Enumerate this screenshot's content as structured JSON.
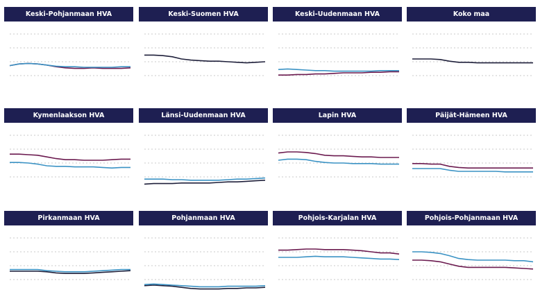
{
  "chart_data": {
    "type": "line",
    "layout": "small-multiples 4x3",
    "colors": {
      "panel_title_bg": "#1e1f52",
      "panel_title_text": "#ffffff",
      "series_a": "#6b1a4f",
      "series_b": "#3a92c4"
    },
    "ylim": [
      0,
      100
    ],
    "grid": true,
    "panels": [
      {
        "title": "Keski-Pohjanmaan HVA",
        "series": [
          {
            "color": "#6b1a4f",
            "values": [
              43,
              46,
              47,
              46,
              44,
              41,
              39,
              38,
              38,
              39,
              38,
              38,
              38,
              39
            ]
          },
          {
            "color": "#3a92c4",
            "values": [
              43,
              46,
              47,
              46,
              44,
              42,
              41,
              41,
              40,
              40,
              40,
              40,
              41,
              41
            ]
          }
        ]
      },
      {
        "title": "Keski-Suomen HVA",
        "series": [
          {
            "color": "#1e1f3a",
            "values": [
              62,
              62,
              61,
              59,
              55,
              53,
              52,
              51,
              51,
              50,
              49,
              48,
              49,
              50
            ]
          }
        ]
      },
      {
        "title": "Keski-Uudenmaan HVA",
        "series": [
          {
            "color": "#6b1a4f",
            "values": [
              26,
              26,
              27,
              27,
              28,
              28,
              29,
              30,
              30,
              30,
              31,
              31,
              32,
              32
            ]
          },
          {
            "color": "#3a92c4",
            "values": [
              36,
              37,
              36,
              35,
              34,
              34,
              33,
              33,
              33,
              33,
              33,
              34,
              34,
              34
            ]
          }
        ]
      },
      {
        "title": "Koko maa",
        "series": [
          {
            "color": "#1e1f3a",
            "values": [
              55,
              55,
              55,
              54,
              51,
              49,
              49,
              48,
              48,
              48,
              48,
              48,
              48,
              48
            ]
          }
        ]
      },
      {
        "title": "Kymenlaakson HVA",
        "series": [
          {
            "color": "#6b1a4f",
            "values": [
              66,
              66,
              65,
              64,
              61,
              58,
              56,
              56,
              55,
              55,
              55,
              56,
              57,
              57
            ]
          },
          {
            "color": "#3a92c4",
            "values": [
              51,
              51,
              50,
              48,
              45,
              44,
              44,
              43,
              43,
              43,
              42,
              41,
              42,
              42
            ]
          }
        ]
      },
      {
        "title": "Länsi-Uudenmaan HVA",
        "series": [
          {
            "color": "#1e1f3a",
            "values": [
              12,
              13,
              13,
              13,
              14,
              14,
              14,
              14,
              15,
              16,
              16,
              17,
              18,
              19
            ]
          },
          {
            "color": "#3a92c4",
            "values": [
              21,
              21,
              21,
              20,
              20,
              19,
              19,
              19,
              19,
              20,
              21,
              21,
              22,
              23
            ]
          }
        ]
      },
      {
        "title": "Lapin HVA",
        "series": [
          {
            "color": "#6b1a4f",
            "values": [
              68,
              70,
              70,
              69,
              67,
              64,
              63,
              63,
              62,
              61,
              61,
              60,
              60,
              60
            ]
          },
          {
            "color": "#3a92c4",
            "values": [
              55,
              57,
              57,
              56,
              53,
              51,
              50,
              50,
              49,
              49,
              49,
              48,
              48,
              48
            ]
          }
        ]
      },
      {
        "title": "Päijät-Hämeen HVA",
        "series": [
          {
            "color": "#6b1a4f",
            "values": [
              49,
              49,
              48,
              48,
              44,
              42,
              41,
              41,
              41,
              41,
              41,
              41,
              41,
              41
            ]
          },
          {
            "color": "#3a92c4",
            "values": [
              40,
              40,
              40,
              40,
              37,
              35,
              35,
              35,
              35,
              35,
              34,
              34,
              34,
              34
            ]
          }
        ]
      },
      {
        "title": "Pirkanmaan HVA",
        "series": [
          {
            "color": "#1e1f3a",
            "values": [
              40,
              40,
              40,
              40,
              39,
              37,
              36,
              36,
              36,
              37,
              38,
              39,
              40,
              41
            ]
          },
          {
            "color": "#3a92c4",
            "values": [
              43,
              43,
              43,
              43,
              41,
              40,
              39,
              39,
              39,
              40,
              41,
              42,
              43,
              43
            ]
          }
        ]
      },
      {
        "title": "Pohjanmaan HVA",
        "series": [
          {
            "color": "#1e1f3a",
            "values": [
              14,
              15,
              14,
              13,
              11,
              9,
              8,
              8,
              8,
              9,
              9,
              10,
              10,
              11
            ]
          },
          {
            "color": "#3a92c4",
            "values": [
              16,
              17,
              16,
              15,
              14,
              13,
              12,
              12,
              12,
              13,
              13,
              13,
              13,
              14
            ]
          }
        ]
      },
      {
        "title": "Pohjois-Karjalan HVA",
        "series": [
          {
            "color": "#6b1a4f",
            "values": [
              78,
              78,
              79,
              80,
              80,
              79,
              79,
              79,
              78,
              77,
              75,
              73,
              73,
              71
            ]
          },
          {
            "color": "#3a92c4",
            "values": [
              65,
              65,
              65,
              66,
              67,
              66,
              66,
              66,
              65,
              64,
              63,
              62,
              62,
              61
            ]
          }
        ]
      },
      {
        "title": "Pohjois-Pohjanmaan HVA",
        "series": [
          {
            "color": "#3a92c4",
            "values": [
              75,
              75,
              74,
              72,
              68,
              63,
              61,
              60,
              60,
              60,
              60,
              59,
              59,
              57
            ]
          },
          {
            "color": "#6b1a4f",
            "values": [
              60,
              60,
              59,
              57,
              53,
              49,
              47,
              47,
              47,
              47,
              47,
              46,
              45,
              44
            ]
          }
        ]
      }
    ]
  }
}
